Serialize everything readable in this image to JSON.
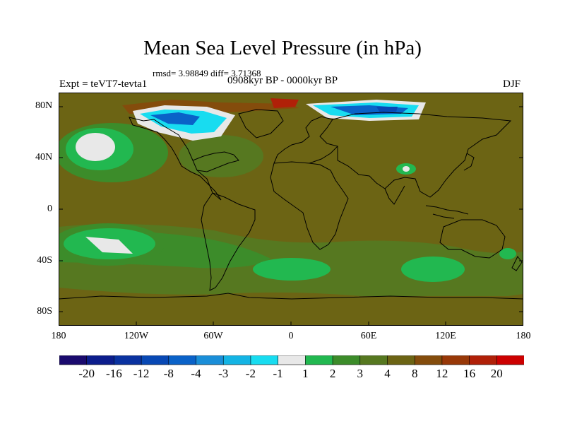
{
  "title": "Mean Sea Level Pressure (in hPa)",
  "stats": "rmsd= 3.98849 diff= 3.71368",
  "experiment": "Expt = teVT7-tevta1",
  "period": "0908kyr BP - 0000kyr BP",
  "season": "DJF",
  "lat_labels": [
    "80N",
    "40N",
    "0",
    "40S",
    "80S"
  ],
  "lon_labels": [
    "180",
    "120W",
    "60W",
    "0",
    "60E",
    "120E",
    "180"
  ],
  "colorbar": {
    "labels": [
      "-20",
      "-16",
      "-12",
      "-8",
      "-4",
      "-3",
      "-2",
      "-1",
      "1",
      "2",
      "3",
      "4",
      "8",
      "12",
      "16",
      "20"
    ],
    "colors": [
      "#1a0a6e",
      "#0c1d8c",
      "#0a32a0",
      "#0848b4",
      "#0a62c8",
      "#1a8ed8",
      "#14b4e4",
      "#18dcf0",
      "#e8e8e8",
      "#22b850",
      "#3c8c2a",
      "#567820",
      "#6c6414",
      "#844c0c",
      "#983808",
      "#b02008",
      "#cc0000"
    ]
  },
  "colors": {
    "background_field": "#6c6414",
    "coast": "#000000"
  }
}
